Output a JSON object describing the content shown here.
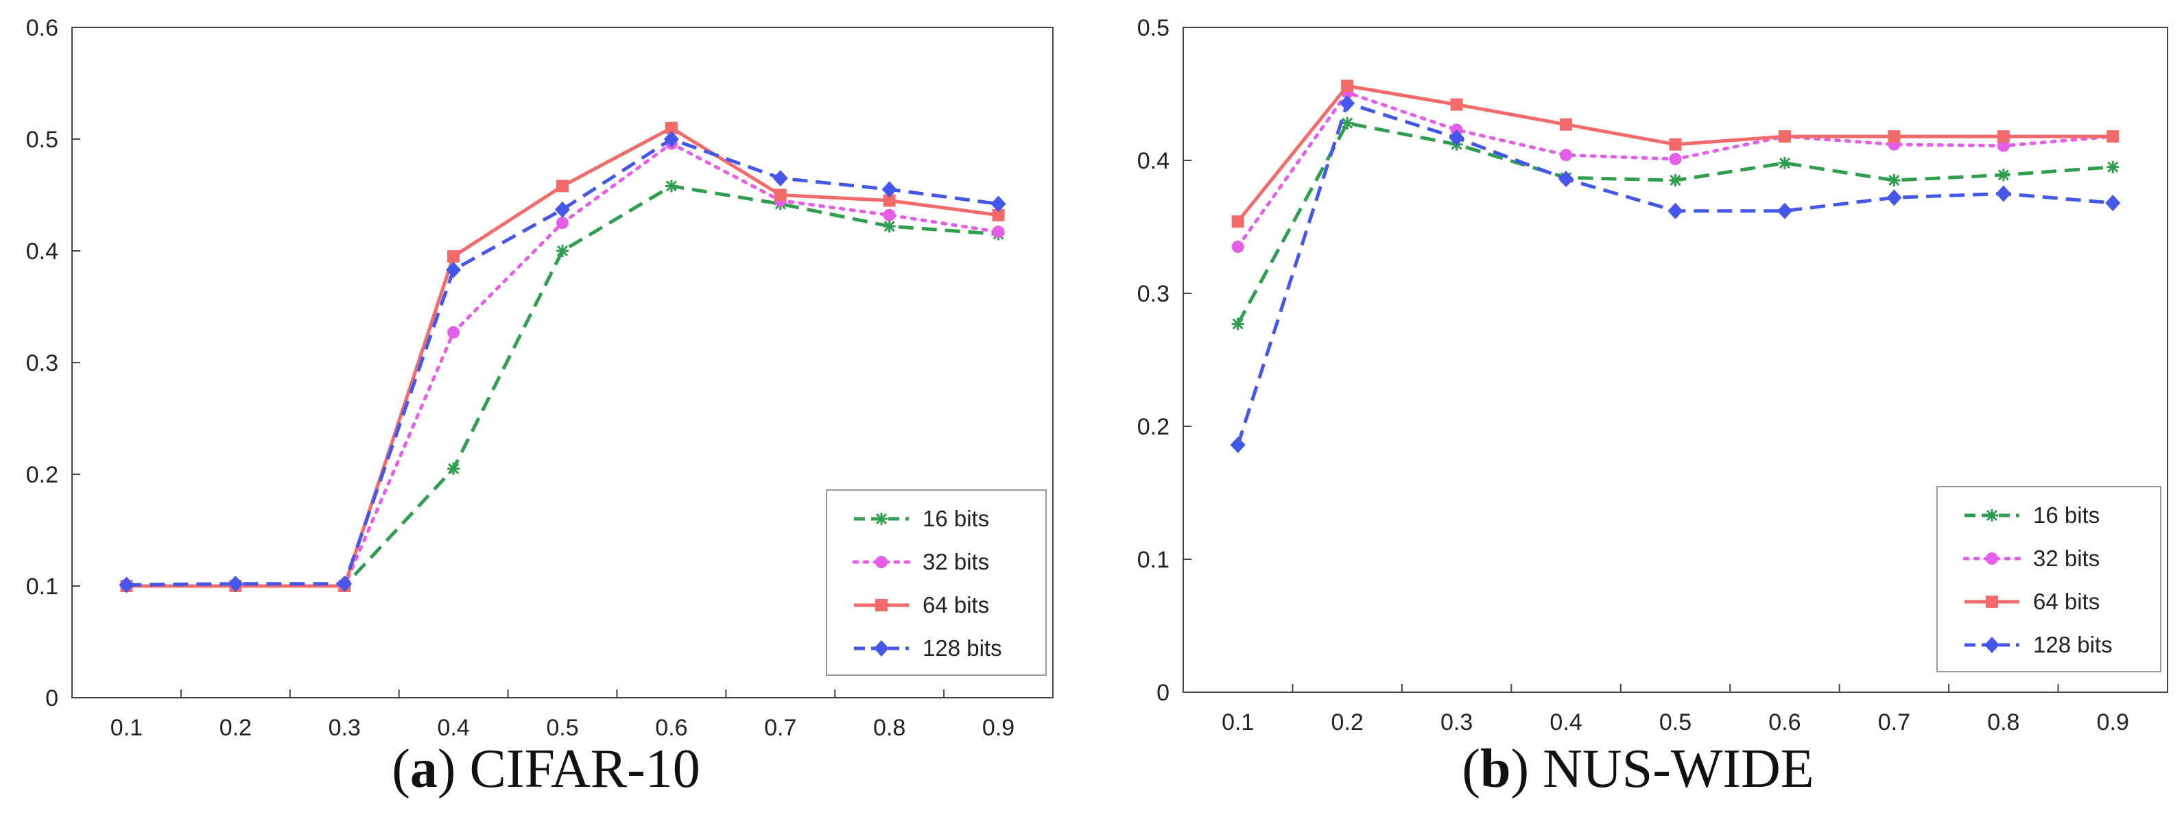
{
  "colors": {
    "16 bits": "#2f9e4f",
    "32 bits": "#e45ee8",
    "64 bits": "#f26a6a",
    "128 bits": "#4557e8"
  },
  "captions": [
    {
      "open": "(",
      "letter": "a",
      "close": ")",
      "text": "CIFAR-10"
    },
    {
      "open": "(",
      "letter": "b",
      "close": ")",
      "text": "NUS-WIDE"
    }
  ],
  "chart_data": [
    {
      "type": "line",
      "title": "(a) CIFAR-10",
      "xlabel": "",
      "ylabel": "",
      "x": [
        0.1,
        0.2,
        0.3,
        0.4,
        0.5,
        0.6,
        0.7,
        0.8,
        0.9
      ],
      "x_ticks": [
        "0.1",
        "0.2",
        "0.3",
        "0.4",
        "0.5",
        "0.6",
        "0.7",
        "0.8",
        "0.9"
      ],
      "ylim": [
        0,
        0.6
      ],
      "y_ticks": [
        "0",
        "0.1",
        "0.2",
        "0.3",
        "0.4",
        "0.5",
        "0.6"
      ],
      "legend_position": "bottom-right",
      "grid": false,
      "series": [
        {
          "name": "16 bits",
          "style": "dashed",
          "marker": "star",
          "values": [
            0.1,
            0.1,
            0.1,
            0.205,
            0.4,
            0.458,
            0.442,
            0.422,
            0.415
          ]
        },
        {
          "name": "32 bits",
          "style": "dotted",
          "marker": "circle",
          "values": [
            0.1,
            0.1,
            0.1,
            0.327,
            0.425,
            0.496,
            0.445,
            0.432,
            0.417
          ]
        },
        {
          "name": "64 bits",
          "style": "solid",
          "marker": "square",
          "values": [
            0.1,
            0.1,
            0.1,
            0.395,
            0.458,
            0.51,
            0.45,
            0.445,
            0.432
          ]
        },
        {
          "name": "128 bits",
          "style": "dashed",
          "marker": "diamond",
          "values": [
            0.101,
            0.102,
            0.102,
            0.383,
            0.437,
            0.5,
            0.465,
            0.455,
            0.442
          ]
        }
      ]
    },
    {
      "type": "line",
      "title": "(b) NUS-WIDE",
      "xlabel": "",
      "ylabel": "",
      "x": [
        0.1,
        0.2,
        0.3,
        0.4,
        0.5,
        0.6,
        0.7,
        0.8,
        0.9
      ],
      "x_ticks": [
        "0.1",
        "0.2",
        "0.3",
        "0.4",
        "0.5",
        "0.6",
        "0.7",
        "0.8",
        "0.9"
      ],
      "ylim": [
        0,
        0.5
      ],
      "y_ticks": [
        "0",
        "0.1",
        "0.2",
        "0.3",
        "0.4",
        "0.5"
      ],
      "legend_position": "bottom-right",
      "grid": false,
      "series": [
        {
          "name": "16 bits",
          "style": "dashed",
          "marker": "star",
          "values": [
            0.277,
            0.428,
            0.412,
            0.387,
            0.385,
            0.398,
            0.385,
            0.389,
            0.395
          ]
        },
        {
          "name": "32 bits",
          "style": "dotted",
          "marker": "circle",
          "values": [
            0.335,
            0.451,
            0.423,
            0.404,
            0.401,
            0.418,
            0.412,
            0.411,
            0.418
          ]
        },
        {
          "name": "64 bits",
          "style": "solid",
          "marker": "square",
          "values": [
            0.354,
            0.456,
            0.442,
            0.427,
            0.412,
            0.418,
            0.418,
            0.418,
            0.418
          ]
        },
        {
          "name": "128 bits",
          "style": "dashed",
          "marker": "diamond",
          "values": [
            0.186,
            0.443,
            0.417,
            0.386,
            0.362,
            0.362,
            0.372,
            0.375,
            0.368
          ]
        }
      ]
    }
  ]
}
